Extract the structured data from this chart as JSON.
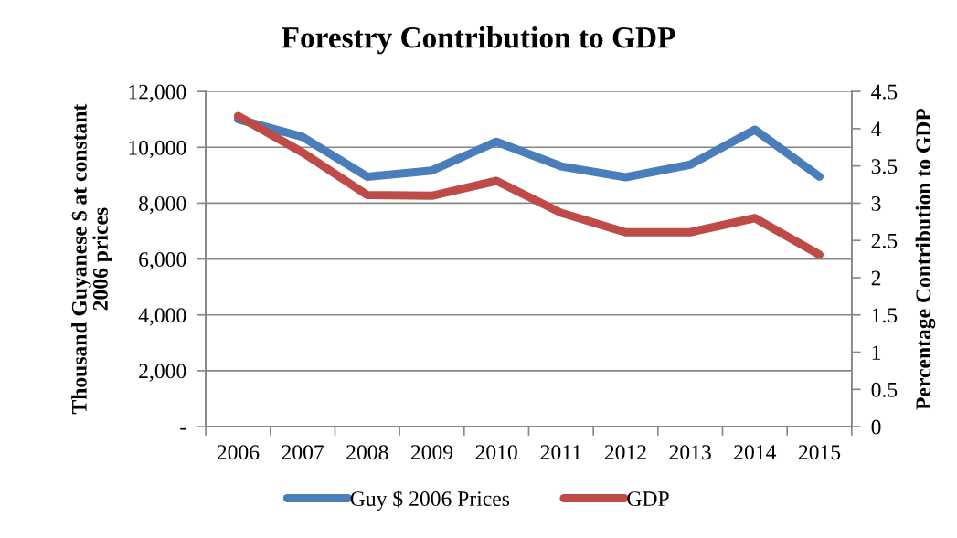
{
  "chart_data": {
    "type": "line",
    "title": "Forestry Contribution to GDP",
    "categories": [
      "2006",
      "2007",
      "2008",
      "2009",
      "2010",
      "2011",
      "2012",
      "2013",
      "2014",
      "2015"
    ],
    "series": [
      {
        "name": "Guy $ 2006 Prices",
        "color": "#4a7ebb",
        "values": [
          11000,
          10370,
          8950,
          9170,
          10200,
          9320,
          8930,
          9380,
          10630,
          8950
        ]
      },
      {
        "name": "GDP",
        "color": "#be4b48",
        "axis": "y2",
        "values": [
          4.17,
          3.68,
          3.11,
          3.1,
          3.3,
          2.87,
          2.61,
          2.61,
          2.8,
          2.31
        ]
      }
    ],
    "ylabel": "Thousand Guyanese $ at constant\n2006 prices",
    "y2label": "Percentage Contribution to GDP",
    "ylim": [
      0,
      12000
    ],
    "yticks": [
      {
        "value": 0,
        "label": "-"
      },
      {
        "value": 2000,
        "label": "2,000"
      },
      {
        "value": 4000,
        "label": "4,000"
      },
      {
        "value": 6000,
        "label": "6,000"
      },
      {
        "value": 8000,
        "label": "8,000"
      },
      {
        "value": 10000,
        "label": "10,000"
      },
      {
        "value": 12000,
        "label": "12,000"
      }
    ],
    "y2lim": [
      0,
      4.5
    ],
    "y2ticks": [
      0,
      0.5,
      1,
      1.5,
      2,
      2.5,
      3,
      3.5,
      4,
      4.5
    ],
    "grid": "y",
    "legend": "bottom",
    "marker": "none",
    "line_style": "solid"
  }
}
